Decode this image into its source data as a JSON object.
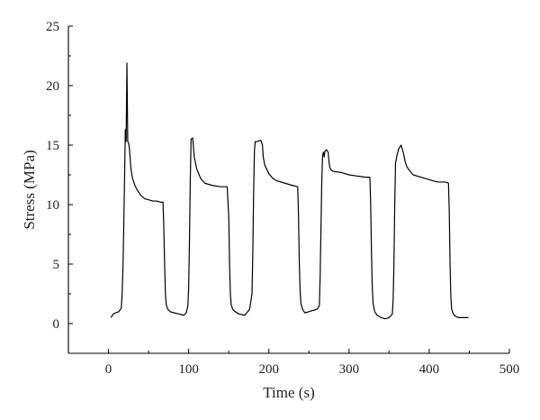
{
  "chart_data": {
    "type": "line",
    "title": "",
    "xlabel": "Time (s)",
    "ylabel": "Stress (MPa)",
    "xlim": [
      -50,
      500
    ],
    "ylim": [
      -2.5,
      25
    ],
    "xticks": [
      0,
      100,
      200,
      300,
      400,
      500
    ],
    "yticks": [
      0,
      5,
      10,
      15,
      20,
      25
    ],
    "xtick_labels": [
      "0",
      "100",
      "200",
      "300",
      "400",
      "500"
    ],
    "ytick_labels": [
      "0",
      "5",
      "10",
      "15",
      "20",
      "25"
    ],
    "grid": false,
    "series": [
      {
        "x": [
          3,
          6,
          9,
          13,
          16,
          17,
          18,
          19,
          20,
          21,
          22,
          23,
          24,
          25,
          26,
          28,
          30,
          33,
          36,
          40,
          45,
          50,
          55,
          60,
          65,
          68,
          69,
          70,
          71,
          72,
          74,
          77,
          82,
          88,
          94,
          97,
          99,
          100,
          101,
          102,
          103,
          105,
          107,
          110,
          115,
          120,
          130,
          140,
          148,
          150,
          151,
          152,
          153,
          155,
          158,
          163,
          170,
          176,
          179,
          180,
          181,
          182,
          183,
          185,
          190,
          192,
          193,
          195,
          200,
          205,
          210,
          220,
          230,
          236,
          237,
          238,
          239,
          240,
          242,
          245,
          250,
          255,
          260,
          263,
          264,
          265,
          266,
          267,
          268,
          269,
          270,
          272,
          274,
          275,
          276,
          278,
          280,
          290,
          300,
          310,
          320,
          326,
          327,
          328,
          329,
          330,
          332,
          335,
          340,
          345,
          350,
          354,
          355,
          356,
          357,
          358,
          360,
          362,
          365,
          368,
          370,
          372,
          375,
          380,
          390,
          400,
          410,
          420,
          424,
          425,
          426,
          427,
          428,
          430,
          433,
          437,
          441,
          445,
          449
        ],
        "y": [
          0.5,
          0.8,
          0.9,
          1.0,
          1.3,
          2.5,
          4.5,
          8.0,
          12.0,
          16.3,
          15.3,
          21.9,
          15.3,
          15.2,
          14.8,
          13.0,
          12.2,
          11.6,
          11.2,
          10.8,
          10.5,
          10.4,
          10.3,
          10.3,
          10.2,
          10.2,
          8.0,
          5.0,
          2.5,
          1.6,
          1.2,
          1.0,
          0.9,
          0.8,
          0.7,
          0.9,
          1.5,
          3.0,
          7.0,
          12.0,
          15.5,
          15.6,
          14.0,
          13.0,
          12.2,
          11.8,
          11.6,
          11.5,
          11.5,
          9.0,
          5.0,
          2.5,
          1.6,
          1.2,
          1.0,
          0.8,
          0.7,
          1.2,
          2.5,
          6.0,
          11.0,
          14.5,
          15.3,
          15.3,
          15.4,
          15.0,
          14.0,
          13.3,
          12.6,
          12.2,
          12.0,
          11.8,
          11.6,
          11.5,
          9.0,
          5.0,
          2.7,
          1.7,
          1.2,
          0.9,
          1.0,
          1.1,
          1.2,
          1.5,
          4.0,
          8.0,
          12.0,
          14.1,
          14.4,
          14.0,
          14.5,
          14.6,
          14.4,
          13.6,
          13.1,
          12.9,
          12.8,
          12.7,
          12.5,
          12.4,
          12.3,
          12.3,
          10.0,
          6.0,
          3.0,
          1.7,
          1.0,
          0.7,
          0.5,
          0.4,
          0.5,
          0.8,
          2.0,
          5.0,
          10.0,
          13.5,
          14.2,
          14.7,
          15.0,
          14.3,
          13.6,
          13.2,
          12.9,
          12.5,
          12.3,
          12.1,
          11.9,
          11.9,
          11.8,
          9.5,
          5.0,
          2.2,
          1.2,
          0.8,
          0.6,
          0.5,
          0.5,
          0.5,
          0.5
        ]
      }
    ]
  }
}
